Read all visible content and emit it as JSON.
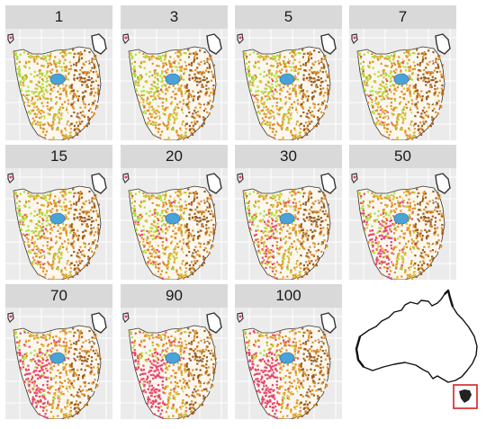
{
  "panels": [
    {
      "label": "1",
      "red_level": 0.0
    },
    {
      "label": "3",
      "red_level": 0.02
    },
    {
      "label": "5",
      "red_level": 0.04
    },
    {
      "label": "7",
      "red_level": 0.06
    },
    {
      "label": "15",
      "red_level": 0.12
    },
    {
      "label": "20",
      "red_level": 0.16
    },
    {
      "label": "30",
      "red_level": 0.24
    },
    {
      "label": "50",
      "red_level": 0.4
    },
    {
      "label": "70",
      "red_level": 0.55
    },
    {
      "label": "90",
      "red_level": 0.65
    },
    {
      "label": "100",
      "red_level": 0.7
    }
  ],
  "colors": {
    "strip": "#d9d9d9",
    "panel_bg": "#ebebeb",
    "grid": "#ffffff",
    "orange": "#e0902a",
    "brown": "#9a5a1e",
    "green": "#a8e03a",
    "yellow": "#d8c040",
    "pink": "#e8456e",
    "blue": "#4aa3d8",
    "dark": "#333333",
    "locator_box": "#d62020"
  },
  "inset": {
    "region": "Australia",
    "highlight": "Tasmania"
  }
}
